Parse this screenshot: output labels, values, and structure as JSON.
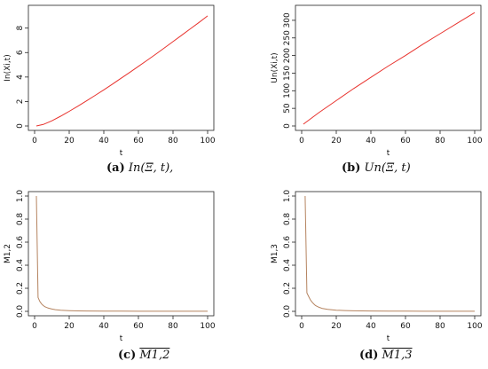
{
  "chart_data": [
    {
      "type": "line",
      "panel": "a",
      "caption_label": "(a)",
      "caption_math": "In(Ξ, t),",
      "xlabel": "t",
      "ylabel": "In(Xi,t)",
      "xlim": [
        0,
        100
      ],
      "ylim": [
        0,
        9.5
      ],
      "xticks": [
        "0",
        "20",
        "40",
        "60",
        "80",
        "100"
      ],
      "yticks": [
        "0",
        "2",
        "4",
        "6",
        "8"
      ],
      "color": "#e8332e",
      "series": [
        {
          "x": [
            1,
            5,
            10,
            15,
            20,
            25,
            30,
            35,
            40,
            45,
            50,
            55,
            60,
            65,
            70,
            75,
            80,
            85,
            90,
            95,
            100
          ],
          "values": [
            0.0,
            0.12,
            0.42,
            0.8,
            1.2,
            1.62,
            2.05,
            2.5,
            2.95,
            3.42,
            3.9,
            4.38,
            4.87,
            5.37,
            5.87,
            6.38,
            6.9,
            7.42,
            7.94,
            8.46,
            9.0
          ]
        }
      ]
    },
    {
      "type": "line",
      "panel": "b",
      "caption_label": "(b)",
      "caption_math": "Un(Ξ, t)",
      "xlabel": "t",
      "ylabel": "Un(Xi,t)",
      "xlim": [
        0,
        100
      ],
      "ylim": [
        0,
        330
      ],
      "xticks": [
        "0",
        "20",
        "40",
        "60",
        "80",
        "100"
      ],
      "yticks": [
        "0",
        "50",
        "100",
        "150",
        "200",
        "250",
        "300"
      ],
      "color": "#e8332e",
      "series": [
        {
          "x": [
            1,
            10,
            20,
            30,
            40,
            50,
            60,
            70,
            80,
            90,
            100
          ],
          "values": [
            5,
            38,
            72,
            106,
            138,
            170,
            200,
            232,
            262,
            292,
            322
          ]
        }
      ]
    },
    {
      "type": "line",
      "panel": "c",
      "caption_label": "(c)",
      "caption_math": "M1,2",
      "xlabel": "t",
      "ylabel": "M1,2",
      "xlim": [
        0,
        100
      ],
      "ylim": [
        0,
        1.0
      ],
      "xticks": [
        "0",
        "20",
        "40",
        "60",
        "80",
        "100"
      ],
      "yticks": [
        "0.0",
        "0.2",
        "0.4",
        "0.6",
        "0.8",
        "1.0"
      ],
      "color": "#b5835f",
      "series": [
        {
          "x": [
            1,
            2,
            3,
            4,
            5,
            6,
            7,
            8,
            10,
            12,
            15,
            20,
            25,
            30,
            40,
            50,
            60,
            70,
            80,
            90,
            100
          ],
          "values": [
            1.0,
            0.12,
            0.085,
            0.065,
            0.05,
            0.04,
            0.033,
            0.028,
            0.02,
            0.015,
            0.01,
            0.006,
            0.004,
            0.003,
            0.002,
            0.0015,
            0.001,
            0.001,
            0.001,
            0.001,
            0.001
          ]
        }
      ]
    },
    {
      "type": "line",
      "panel": "d",
      "caption_label": "(d)",
      "caption_math": "M1,3",
      "xlabel": "t",
      "ylabel": "M1,3",
      "xlim": [
        0,
        100
      ],
      "ylim": [
        0,
        1.0
      ],
      "xticks": [
        "0",
        "20",
        "40",
        "60",
        "80",
        "100"
      ],
      "yticks": [
        "0.0",
        "0.2",
        "0.4",
        "0.6",
        "0.8",
        "1.0"
      ],
      "color": "#b5835f",
      "series": [
        {
          "x": [
            2,
            3,
            4,
            5,
            6,
            7,
            8,
            10,
            12,
            15,
            20,
            25,
            30,
            40,
            50,
            60,
            70,
            80,
            90,
            100
          ],
          "values": [
            1.0,
            0.16,
            0.13,
            0.1,
            0.08,
            0.065,
            0.05,
            0.035,
            0.025,
            0.017,
            0.01,
            0.007,
            0.005,
            0.003,
            0.002,
            0.0015,
            0.001,
            0.001,
            0.001,
            0.001
          ]
        }
      ]
    }
  ]
}
